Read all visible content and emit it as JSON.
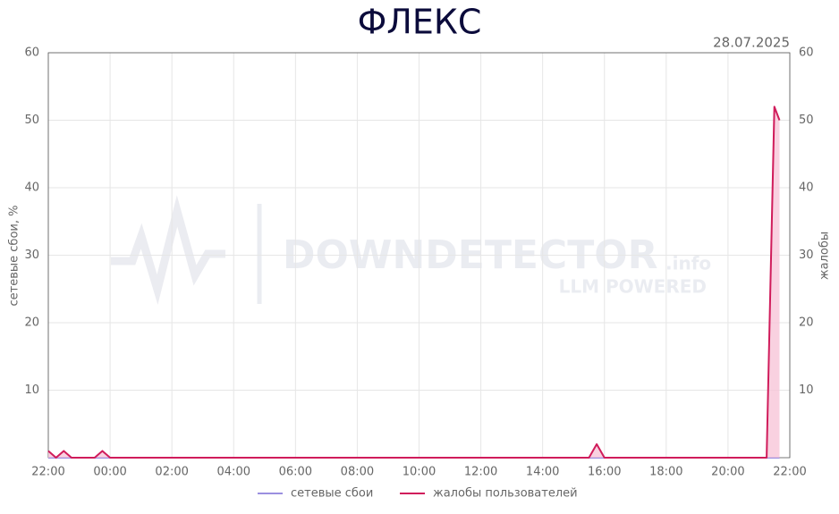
{
  "chart_data": {
    "type": "line",
    "title": "ФЛЕКС",
    "date": "28.07.2025",
    "ylabel": "сетевые сбои, %",
    "y2label": "жалобы",
    "watermark": {
      "brand": "DOWNDETECTOR",
      "suffix": ".info",
      "tagline": "LLM POWERED"
    },
    "x": [
      "22:00",
      "22:15",
      "22:30",
      "22:45",
      "23:30",
      "23:45",
      "00:00",
      "15:30",
      "15:45",
      "16:00",
      "21:15",
      "21:30",
      "21:40"
    ],
    "xticks": [
      "22:00",
      "00:00",
      "02:00",
      "04:00",
      "06:00",
      "08:00",
      "10:00",
      "12:00",
      "14:00",
      "16:00",
      "18:00",
      "20:00",
      "22:00"
    ],
    "ylim": [
      0,
      60
    ],
    "yticks": [
      10,
      20,
      30,
      40,
      50,
      60
    ],
    "y2lim": [
      0,
      60
    ],
    "y2ticks": [
      10,
      20,
      30,
      40,
      50,
      60
    ],
    "grid": true,
    "series": [
      {
        "name": "сетевые сбои",
        "color": "#9b8fe0",
        "values": [
          0,
          0,
          0,
          0,
          0,
          0,
          0,
          0,
          0,
          0,
          0,
          0,
          0
        ]
      },
      {
        "name": "жалобы пользователей",
        "color": "#d01c5b",
        "axis": "y2",
        "fill": "#f7c6d8",
        "values": [
          1,
          0,
          1,
          0,
          0,
          1,
          0,
          0,
          2,
          0,
          0,
          52,
          50
        ]
      }
    ]
  }
}
